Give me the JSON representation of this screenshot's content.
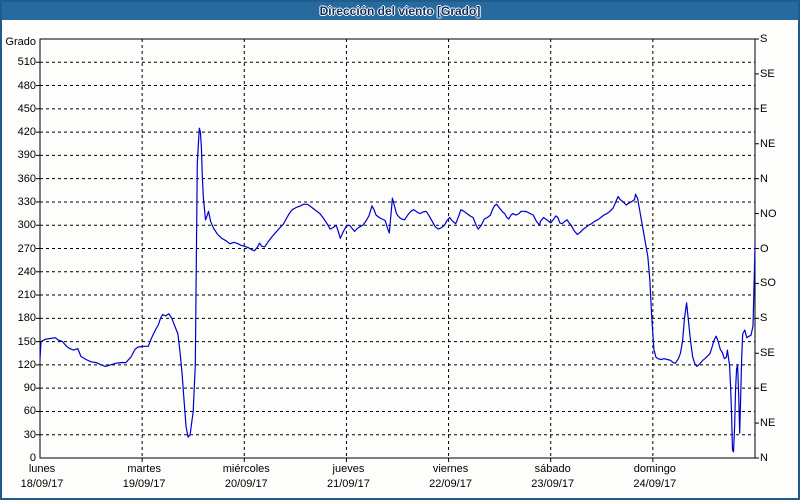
{
  "header": {
    "title": "Dirección del viento [Grado]"
  },
  "chart_data": {
    "type": "line",
    "title": "Dirección del viento [Grado]",
    "ylabel": "Grado",
    "ylim": [
      0,
      540
    ],
    "y_tick_step_left": 30,
    "grid": {
      "horizontal": "dashed",
      "vertical": "dashed-per-day",
      "color": "#000000"
    },
    "legend": "none",
    "colors": {
      "line": "#0000CC",
      "plot_border": "#000000",
      "background": "#FDFDFB",
      "header_bg": "#266A9F",
      "header_text": "#0D2D5B",
      "frame_border": "#1E5C8C"
    },
    "x_days": [
      {
        "name": "lunes",
        "date": "18/09/17"
      },
      {
        "name": "martes",
        "date": "19/09/17"
      },
      {
        "name": "miércoles",
        "date": "20/09/17"
      },
      {
        "name": "jueves",
        "date": "21/09/17"
      },
      {
        "name": "viernes",
        "date": "22/09/17"
      },
      {
        "name": "sábado",
        "date": "23/09/17"
      },
      {
        "name": "domingo",
        "date": "24/09/17"
      }
    ],
    "x_range_days": [
      0,
      7
    ],
    "y_ticks_right": [
      {
        "deg": 540,
        "label": "S"
      },
      {
        "deg": 495,
        "label": "SE"
      },
      {
        "deg": 450,
        "label": "E"
      },
      {
        "deg": 405,
        "label": "NE"
      },
      {
        "deg": 360,
        "label": "N"
      },
      {
        "deg": 315,
        "label": "NO"
      },
      {
        "deg": 270,
        "label": "O"
      },
      {
        "deg": 225,
        "label": "SO"
      },
      {
        "deg": 180,
        "label": "S"
      },
      {
        "deg": 135,
        "label": "SE"
      },
      {
        "deg": 90,
        "label": "E"
      },
      {
        "deg": 45,
        "label": "NE"
      },
      {
        "deg": 0,
        "label": "N"
      }
    ],
    "series": [
      {
        "name": "Dirección del viento",
        "units": "Grado",
        "points": [
          [
            0,
            127
          ],
          [
            0.01,
            150
          ],
          [
            0.05,
            153
          ],
          [
            0.1,
            154
          ],
          [
            0.15,
            155
          ],
          [
            0.18,
            152
          ],
          [
            0.22,
            150
          ],
          [
            0.26,
            144
          ],
          [
            0.29,
            141
          ],
          [
            0.33,
            139
          ],
          [
            0.37,
            141
          ],
          [
            0.4,
            131
          ],
          [
            0.45,
            127
          ],
          [
            0.5,
            124
          ],
          [
            0.55,
            123
          ],
          [
            0.6,
            120
          ],
          [
            0.64,
            118
          ],
          [
            0.69,
            120
          ],
          [
            0.74,
            122
          ],
          [
            0.79,
            123
          ],
          [
            0.84,
            123
          ],
          [
            0.89,
            130
          ],
          [
            0.93,
            140
          ],
          [
            0.96,
            143
          ],
          [
            1.01,
            144
          ],
          [
            1.06,
            144
          ],
          [
            1.09,
            154
          ],
          [
            1.13,
            165
          ],
          [
            1.16,
            172
          ],
          [
            1.18,
            180
          ],
          [
            1.2,
            185
          ],
          [
            1.23,
            183
          ],
          [
            1.26,
            186
          ],
          [
            1.29,
            180
          ],
          [
            1.32,
            170
          ],
          [
            1.35,
            160
          ],
          [
            1.37,
            138
          ],
          [
            1.39,
            110
          ],
          [
            1.41,
            75
          ],
          [
            1.43,
            40
          ],
          [
            1.45,
            27
          ],
          [
            1.47,
            30
          ],
          [
            1.5,
            60
          ],
          [
            1.52,
            120
          ],
          [
            1.53,
            250
          ],
          [
            1.54,
            380
          ],
          [
            1.56,
            425
          ],
          [
            1.57,
            420
          ],
          [
            1.58,
            400
          ],
          [
            1.59,
            360
          ],
          [
            1.6,
            335
          ],
          [
            1.62,
            307
          ],
          [
            1.63,
            310
          ],
          [
            1.65,
            318
          ],
          [
            1.67,
            305
          ],
          [
            1.7,
            296
          ],
          [
            1.74,
            288
          ],
          [
            1.78,
            283
          ],
          [
            1.82,
            280
          ],
          [
            1.86,
            276
          ],
          [
            1.9,
            278
          ],
          [
            1.94,
            276
          ],
          [
            1.97,
            274
          ],
          [
            2,
            273
          ],
          [
            2.04,
            271
          ],
          [
            2.08,
            268
          ],
          [
            2.1,
            267
          ],
          [
            2.13,
            272
          ],
          [
            2.15,
            277
          ],
          [
            2.17,
            273
          ],
          [
            2.2,
            272
          ],
          [
            2.23,
            278
          ],
          [
            2.27,
            285
          ],
          [
            2.31,
            291
          ],
          [
            2.35,
            297
          ],
          [
            2.38,
            301
          ],
          [
            2.41,
            308
          ],
          [
            2.44,
            315
          ],
          [
            2.47,
            320
          ],
          [
            2.51,
            323
          ],
          [
            2.55,
            325
          ],
          [
            2.58,
            327
          ],
          [
            2.62,
            327
          ],
          [
            2.66,
            323
          ],
          [
            2.7,
            319
          ],
          [
            2.74,
            315
          ],
          [
            2.78,
            308
          ],
          [
            2.82,
            300
          ],
          [
            2.84,
            295
          ],
          [
            2.87,
            297
          ],
          [
            2.9,
            300
          ],
          [
            2.92,
            292
          ],
          [
            2.94,
            283
          ],
          [
            2.97,
            292
          ],
          [
            3,
            299
          ],
          [
            3.03,
            300
          ],
          [
            3.05,
            297
          ],
          [
            3.08,
            292
          ],
          [
            3.1,
            295
          ],
          [
            3.13,
            298
          ],
          [
            3.16,
            300
          ],
          [
            3.19,
            305
          ],
          [
            3.22,
            312
          ],
          [
            3.25,
            325
          ],
          [
            3.27,
            320
          ],
          [
            3.29,
            313
          ],
          [
            3.32,
            310
          ],
          [
            3.35,
            308
          ],
          [
            3.38,
            306
          ],
          [
            3.4,
            297
          ],
          [
            3.42,
            290
          ],
          [
            3.44,
            320
          ],
          [
            3.45,
            335
          ],
          [
            3.47,
            325
          ],
          [
            3.49,
            315
          ],
          [
            3.5,
            313
          ],
          [
            3.52,
            310
          ],
          [
            3.54,
            308
          ],
          [
            3.57,
            307
          ],
          [
            3.6,
            313
          ],
          [
            3.63,
            318
          ],
          [
            3.66,
            320
          ],
          [
            3.69,
            317
          ],
          [
            3.72,
            315
          ],
          [
            3.75,
            317
          ],
          [
            3.78,
            318
          ],
          [
            3.81,
            312
          ],
          [
            3.84,
            305
          ],
          [
            3.87,
            298
          ],
          [
            3.9,
            295
          ],
          [
            3.93,
            297
          ],
          [
            3.96,
            300
          ],
          [
            3.98,
            305
          ],
          [
            4.01,
            310
          ],
          [
            4.04,
            305
          ],
          [
            4.07,
            302
          ],
          [
            4.1,
            312
          ],
          [
            4.12,
            320
          ],
          [
            4.15,
            318
          ],
          [
            4.18,
            315
          ],
          [
            4.21,
            312
          ],
          [
            4.24,
            310
          ],
          [
            4.27,
            300
          ],
          [
            4.29,
            295
          ],
          [
            4.32,
            300
          ],
          [
            4.35,
            308
          ],
          [
            4.38,
            310
          ],
          [
            4.41,
            313
          ],
          [
            4.43,
            320
          ],
          [
            4.45,
            325
          ],
          [
            4.47,
            327
          ],
          [
            4.5,
            322
          ],
          [
            4.53,
            317
          ],
          [
            4.55,
            315
          ],
          [
            4.57,
            310
          ],
          [
            4.59,
            308
          ],
          [
            4.61,
            313
          ],
          [
            4.63,
            315
          ],
          [
            4.66,
            313
          ],
          [
            4.69,
            315
          ],
          [
            4.71,
            318
          ],
          [
            4.74,
            318
          ],
          [
            4.77,
            317
          ],
          [
            4.8,
            315
          ],
          [
            4.83,
            313
          ],
          [
            4.86,
            305
          ],
          [
            4.89,
            300
          ],
          [
            4.9,
            305
          ],
          [
            4.93,
            310
          ],
          [
            4.96,
            307
          ],
          [
            4.98,
            305
          ],
          [
            5,
            303
          ],
          [
            5.03,
            308
          ],
          [
            5.05,
            312
          ],
          [
            5.07,
            310
          ],
          [
            5.09,
            303
          ],
          [
            5.11,
            302
          ],
          [
            5.14,
            305
          ],
          [
            5.16,
            307
          ],
          [
            5.18,
            303
          ],
          [
            5.2,
            300
          ],
          [
            5.23,
            293
          ],
          [
            5.26,
            288
          ],
          [
            5.29,
            291
          ],
          [
            5.32,
            295
          ],
          [
            5.34,
            297
          ],
          [
            5.37,
            300
          ],
          [
            5.4,
            302
          ],
          [
            5.43,
            305
          ],
          [
            5.46,
            307
          ],
          [
            5.49,
            310
          ],
          [
            5.52,
            313
          ],
          [
            5.55,
            315
          ],
          [
            5.58,
            318
          ],
          [
            5.61,
            322
          ],
          [
            5.63,
            328
          ],
          [
            5.66,
            337
          ],
          [
            5.68,
            333
          ],
          [
            5.71,
            330
          ],
          [
            5.74,
            326
          ],
          [
            5.76,
            328
          ],
          [
            5.79,
            330
          ],
          [
            5.82,
            333
          ],
          [
            5.83,
            340
          ],
          [
            5.85,
            335
          ],
          [
            5.87,
            320
          ],
          [
            5.89,
            305
          ],
          [
            5.91,
            290
          ],
          [
            5.93,
            275
          ],
          [
            5.95,
            260
          ],
          [
            5.97,
            230
          ],
          [
            5.99,
            180
          ],
          [
            6.01,
            140
          ],
          [
            6.03,
            130
          ],
          [
            6.05,
            128
          ],
          [
            6.08,
            127
          ],
          [
            6.11,
            128
          ],
          [
            6.14,
            127
          ],
          [
            6.17,
            126
          ],
          [
            6.2,
            123
          ],
          [
            6.22,
            122
          ],
          [
            6.25,
            128
          ],
          [
            6.27,
            135
          ],
          [
            6.29,
            150
          ],
          [
            6.31,
            180
          ],
          [
            6.33,
            200
          ],
          [
            6.35,
            175
          ],
          [
            6.37,
            150
          ],
          [
            6.39,
            130
          ],
          [
            6.41,
            122
          ],
          [
            6.43,
            118
          ],
          [
            6.45,
            120
          ],
          [
            6.47,
            123
          ],
          [
            6.49,
            126
          ],
          [
            6.51,
            128
          ],
          [
            6.54,
            132
          ],
          [
            6.56,
            135
          ],
          [
            6.58,
            143
          ],
          [
            6.6,
            152
          ],
          [
            6.62,
            157
          ],
          [
            6.64,
            150
          ],
          [
            6.66,
            140
          ],
          [
            6.68,
            136
          ],
          [
            6.7,
            128
          ],
          [
            6.72,
            130
          ],
          [
            6.73,
            139
          ],
          [
            6.75,
            120
          ],
          [
            6.76,
            95
          ],
          [
            6.77,
            60
          ],
          [
            6.78,
            10
          ],
          [
            6.79,
            8
          ],
          [
            6.8,
            40
          ],
          [
            6.81,
            90
          ],
          [
            6.82,
            115
          ],
          [
            6.83,
            120
          ],
          [
            6.84,
            80
          ],
          [
            6.85,
            32
          ],
          [
            6.86,
            80
          ],
          [
            6.87,
            130
          ],
          [
            6.88,
            160
          ],
          [
            6.9,
            165
          ],
          [
            6.92,
            155
          ],
          [
            6.94,
            157
          ],
          [
            6.96,
            158
          ],
          [
            6.98,
            170
          ],
          [
            6.99,
            220
          ],
          [
            7,
            273
          ]
        ]
      }
    ]
  }
}
